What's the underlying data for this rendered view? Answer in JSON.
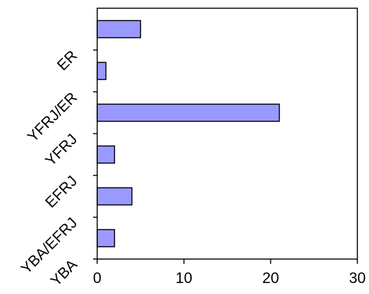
{
  "chart_data": {
    "type": "bar",
    "orientation": "horizontal",
    "categories": [
      "ER",
      "YFRJ/ER",
      "YFRJ",
      "EFRJ",
      "YBA/EFRJ",
      "YBA"
    ],
    "values": [
      5,
      1,
      21,
      2,
      4,
      2
    ],
    "xlim": [
      0,
      30
    ],
    "xticks": [
      0,
      10,
      20,
      30
    ],
    "title": "",
    "xlabel": "",
    "ylabel": "",
    "grid": false,
    "legend": "none",
    "bar_color": "#9999ff",
    "bar_edge_color": "#000000"
  }
}
